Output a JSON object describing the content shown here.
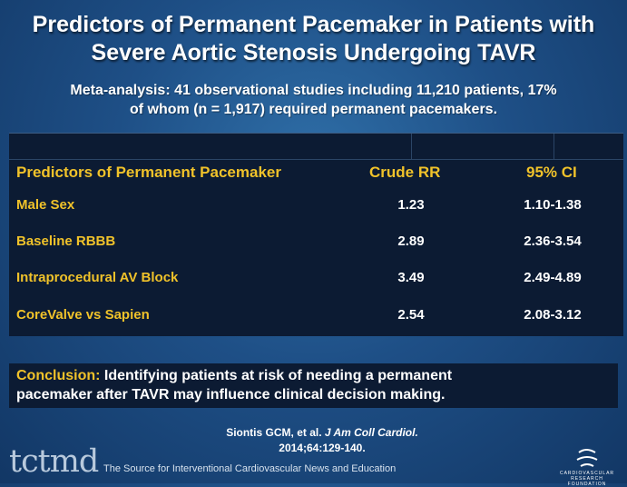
{
  "slide": {
    "title_line1": "Predictors of Permanent Pacemaker in Patients with",
    "title_line2": "Severe Aortic Stenosis Undergoing TAVR",
    "subtitle_line1": "Meta-analysis: 41 observational studies including 11,210 patients, 17%",
    "subtitle_line2": "of whom (n  = 1,917) required permanent pacemakers."
  },
  "table": {
    "headers": [
      "Predictors of Permanent Pacemaker",
      "Crude RR",
      "95% CI"
    ],
    "rows": [
      {
        "label": "Male Sex",
        "rr": "1.23",
        "ci": "1.10-1.38"
      },
      {
        "label": "Baseline RBBB",
        "rr": "2.89",
        "ci": "2.36-3.54"
      },
      {
        "label": "Intraprocedural AV Block",
        "rr": "3.49",
        "ci": "2.49-4.89"
      },
      {
        "label": "CoreValve vs Sapien",
        "rr": "2.54",
        "ci": "2.08-3.12"
      }
    ]
  },
  "conclusion": {
    "lead": "Conclusion:",
    "text_line1": "Identifying patients at risk of needing a permanent",
    "text_line2": "pacemaker after TAVR may influence clinical decision making."
  },
  "citation": {
    "authors": "Siontis GCM, et al.",
    "journal": "J Am Coll Cardiol.",
    "details": "2014;64:129-140."
  },
  "footer": {
    "logo": "tctmd",
    "tagline": "The Source for Interventional Cardiovascular News and Education",
    "foundation": "CARDIOVASCULAR RESEARCH FOUNDATION"
  }
}
